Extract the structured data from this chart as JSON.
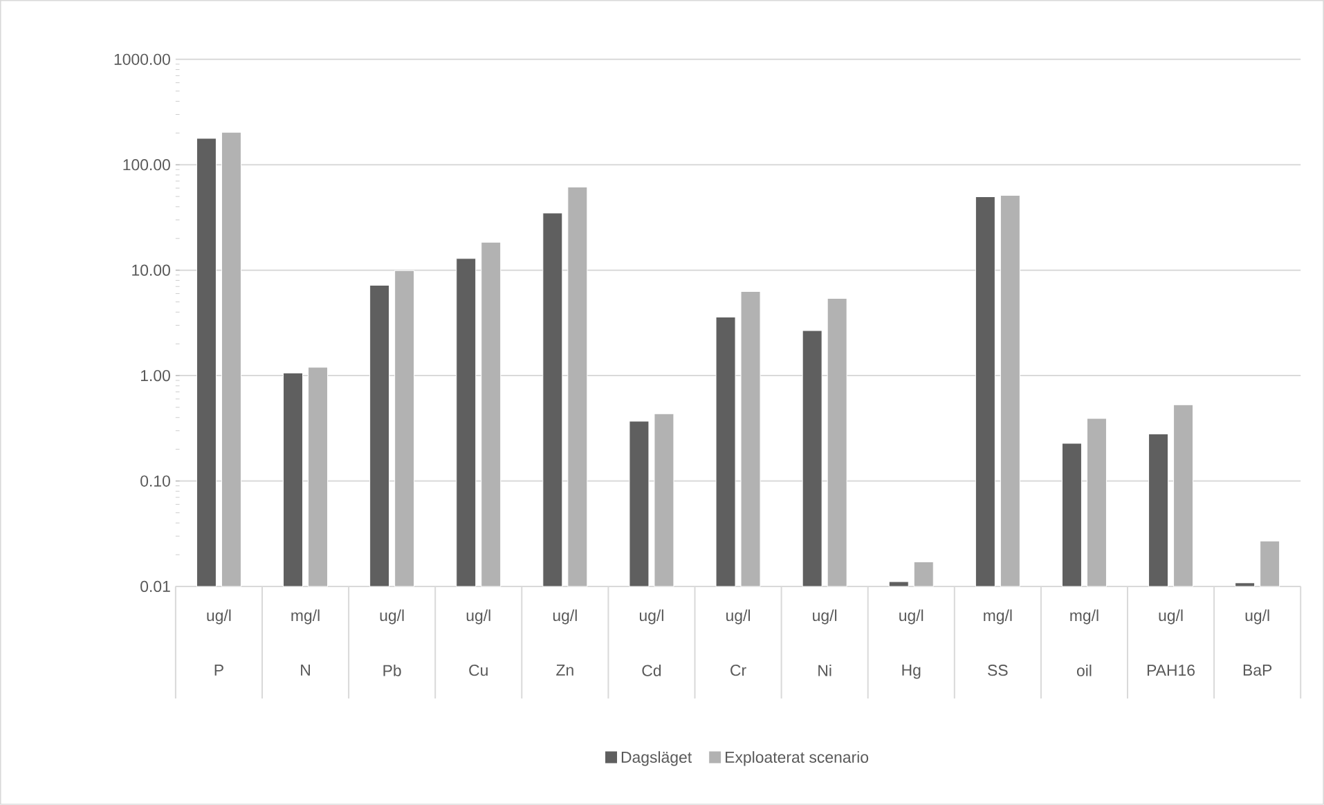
{
  "chart_data": {
    "type": "bar",
    "categories": [
      "P",
      "N",
      "Pb",
      "Cu",
      "Zn",
      "Cd",
      "Cr",
      "Ni",
      "Hg",
      "SS",
      "oil",
      "PAH16",
      "BaP"
    ],
    "annotations": [
      "ug/l",
      "mg/l",
      "ug/l",
      "ug/l",
      "ug/l",
      "ug/l",
      "ug/l",
      "ug/l",
      "ug/l",
      "mg/l",
      "mg/l",
      "ug/l",
      "ug/l"
    ],
    "series": [
      {
        "name": "Dagsläget",
        "color": "#5f5f5f",
        "values": [
          178,
          1.06,
          7.2,
          12.9,
          34.8,
          0.37,
          3.59,
          2.67,
          0.0111,
          49.7,
          0.228,
          0.279,
          0.0108
        ]
      },
      {
        "name": "Exploaterat scenario",
        "color": "#b2b2b2",
        "values": [
          203,
          1.2,
          9.9,
          18.4,
          61.5,
          0.435,
          6.27,
          5.39,
          0.0171,
          51.2,
          0.393,
          0.528,
          0.027
        ]
      }
    ],
    "log": "y",
    "ylim": [
      0.01,
      1000
    ],
    "yticks": [
      {
        "value": 0.01,
        "label": "0.01"
      },
      {
        "value": 0.1,
        "label": "0.10"
      },
      {
        "value": 1,
        "label": "1.00"
      },
      {
        "value": 10,
        "label": "10.00"
      },
      {
        "value": 100,
        "label": "100.00"
      },
      {
        "value": 1000,
        "label": "1000.00"
      }
    ],
    "grid": "y",
    "legend": "bottom"
  }
}
